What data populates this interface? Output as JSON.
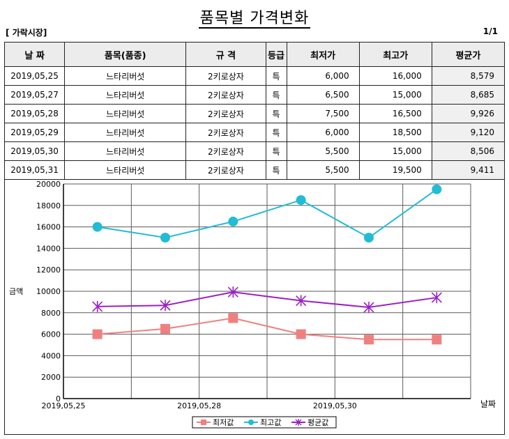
{
  "header": {
    "title": "품목별 가격변화",
    "market_label": "[ 가락시장]",
    "page_indicator": "1/1"
  },
  "table": {
    "columns": [
      "날 짜",
      "품목(품종)",
      "규 격",
      "등급",
      "최저가",
      "최고가",
      "평균가"
    ],
    "rows": [
      [
        "2019,05,25",
        "느타리버섯",
        "2키로상자",
        "특",
        "6,000",
        "16,000",
        "8,579"
      ],
      [
        "2019,05,27",
        "느타리버섯",
        "2키로상자",
        "특",
        "6,500",
        "15,000",
        "8,685"
      ],
      [
        "2019,05,28",
        "느타리버섯",
        "2키로상자",
        "특",
        "7,500",
        "16,500",
        "9,926"
      ],
      [
        "2019,05,29",
        "느타리버섯",
        "2키로상자",
        "특",
        "6,000",
        "18,500",
        "9,120"
      ],
      [
        "2019,05,30",
        "느타리버섯",
        "2키로상자",
        "특",
        "5,500",
        "15,000",
        "8,506"
      ],
      [
        "2019,05,31",
        "느타리버섯",
        "2키로상자",
        "특",
        "5,500",
        "19,500",
        "9,411"
      ]
    ]
  },
  "chart_data": {
    "type": "line",
    "x": [
      "2019,05,25",
      "2019,05,27",
      "2019,05,28",
      "2019,05,29",
      "2019,05,30",
      "2019,05,31"
    ],
    "x_tick_labels": [
      "2019,05,25",
      "2019,05,28",
      "2019,05,30"
    ],
    "xlabel": "날짜",
    "ylabel": "금액",
    "ylim": [
      0,
      20000
    ],
    "y_ticks": [
      0,
      2000,
      4000,
      6000,
      8000,
      10000,
      12000,
      14000,
      16000,
      18000,
      20000
    ],
    "grid": true,
    "legend_position": "bottom-center",
    "series": [
      {
        "name": "최저값",
        "color": "#f08080",
        "marker": "square",
        "values": [
          6000,
          6500,
          7500,
          6000,
          5500,
          5500
        ]
      },
      {
        "name": "최고값",
        "color": "#22bcd4",
        "marker": "circle",
        "values": [
          16000,
          15000,
          16500,
          18500,
          15000,
          19500
        ]
      },
      {
        "name": "평균값",
        "color": "#9b1fc4",
        "marker": "star",
        "values": [
          8579,
          8685,
          9926,
          9120,
          8506,
          9411
        ]
      }
    ]
  }
}
